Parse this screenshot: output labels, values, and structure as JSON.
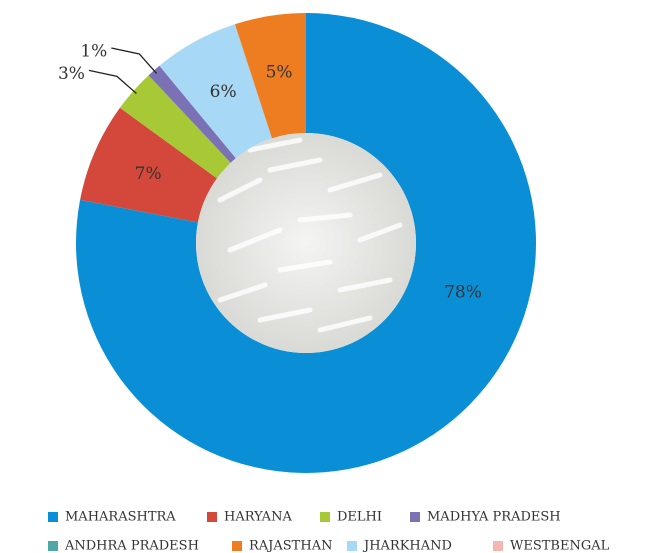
{
  "chart_data": {
    "type": "pie",
    "categories": [
      "MAHARASHTRA",
      "HARYANA",
      "DELHI",
      "MADHYA PRADESH",
      "ANDHRA PRADESH",
      "JHARKHAND",
      "RAJASTHAN",
      "WESTBENGAL"
    ],
    "values": [
      78,
      7,
      3,
      1,
      0,
      6,
      5,
      0
    ],
    "value_labels": [
      "78%",
      "7%",
      "3%",
      "1%",
      null,
      "6%",
      "5%",
      null
    ],
    "colors": [
      "#0a8fd6",
      "#d4483b",
      "#a6c935",
      "#7b72b6",
      "#4fa8a5",
      "#a7d8f5",
      "#ee7d22",
      "#f4b6b0"
    ],
    "legend": "bottom"
  }
}
